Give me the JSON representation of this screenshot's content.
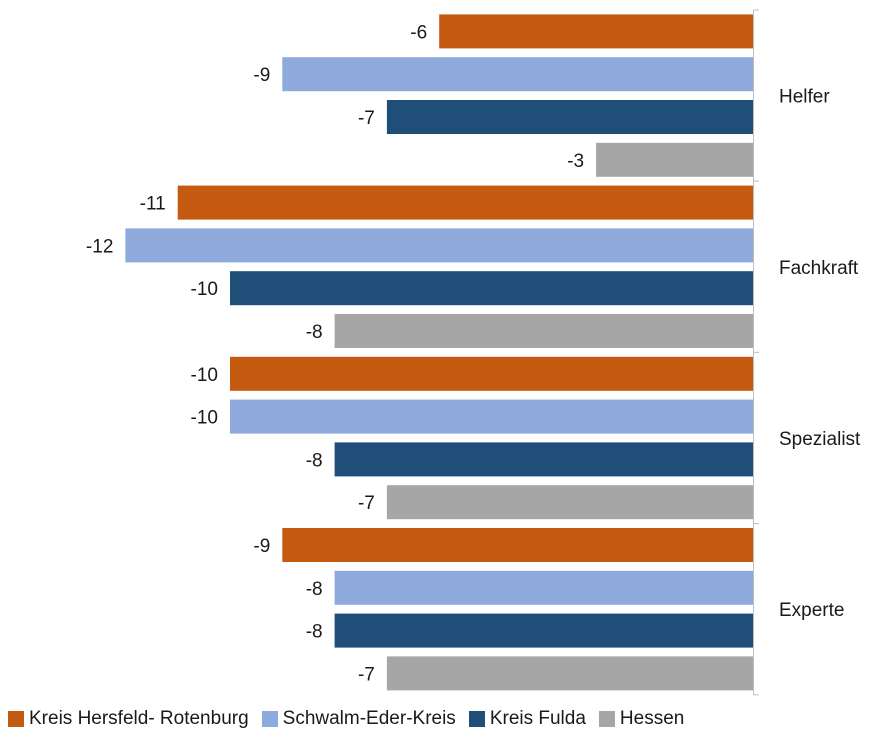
{
  "chart_data": {
    "type": "bar",
    "orientation": "horizontal",
    "categories": [
      "Helfer",
      "Fachkraft",
      "Spezialist",
      "Experte"
    ],
    "series": [
      {
        "name": "Kreis Hersfeld- Rotenburg",
        "color": "#C55A11",
        "values": [
          -6,
          -11,
          -10,
          -9
        ]
      },
      {
        "name": "Schwalm-Eder-Kreis",
        "color": "#8EA9DB",
        "values": [
          -9,
          -12,
          -10,
          -8
        ]
      },
      {
        "name": "Kreis Fulda",
        "color": "#1F4E79",
        "values": [
          -7,
          -10,
          -8,
          -8
        ]
      },
      {
        "name": "Hessen",
        "color": "#A6A6A6",
        "values": [
          -3,
          -8,
          -7,
          -7
        ]
      }
    ],
    "data_labels": true,
    "legend_position": "bottom",
    "xlim": [
      -12,
      0
    ],
    "grid": false
  }
}
